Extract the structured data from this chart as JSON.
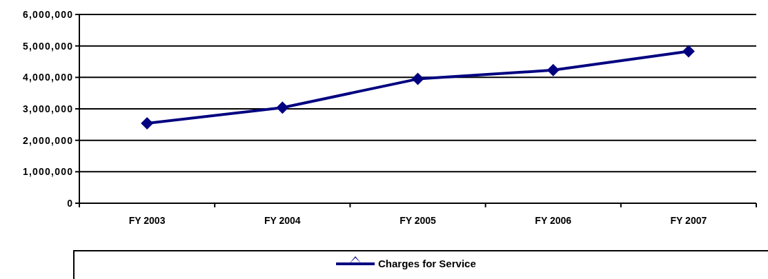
{
  "chart_data": {
    "type": "line",
    "categories": [
      "FY 2003",
      "FY 2004",
      "FY 2005",
      "FY 2006",
      "FY 2007"
    ],
    "series": [
      {
        "name": "Charges for Service",
        "color": "#000080",
        "values": [
          2540000,
          3040000,
          3950000,
          4230000,
          4830000
        ]
      }
    ],
    "ylim": [
      0,
      6000000
    ],
    "yticks": [
      {
        "value": 0,
        "label": "0"
      },
      {
        "value": 1000000,
        "label": "1,000,000"
      },
      {
        "value": 2000000,
        "label": "2,000,000"
      },
      {
        "value": 3000000,
        "label": "3,000,000"
      },
      {
        "value": 4000000,
        "label": "4,000,000"
      },
      {
        "value": 5000000,
        "label": "5,000,000"
      },
      {
        "value": 6000000,
        "label": "6,000,000"
      }
    ],
    "grid": "y",
    "legend": "bottom",
    "marker": "diamond",
    "line_style": "solid"
  }
}
